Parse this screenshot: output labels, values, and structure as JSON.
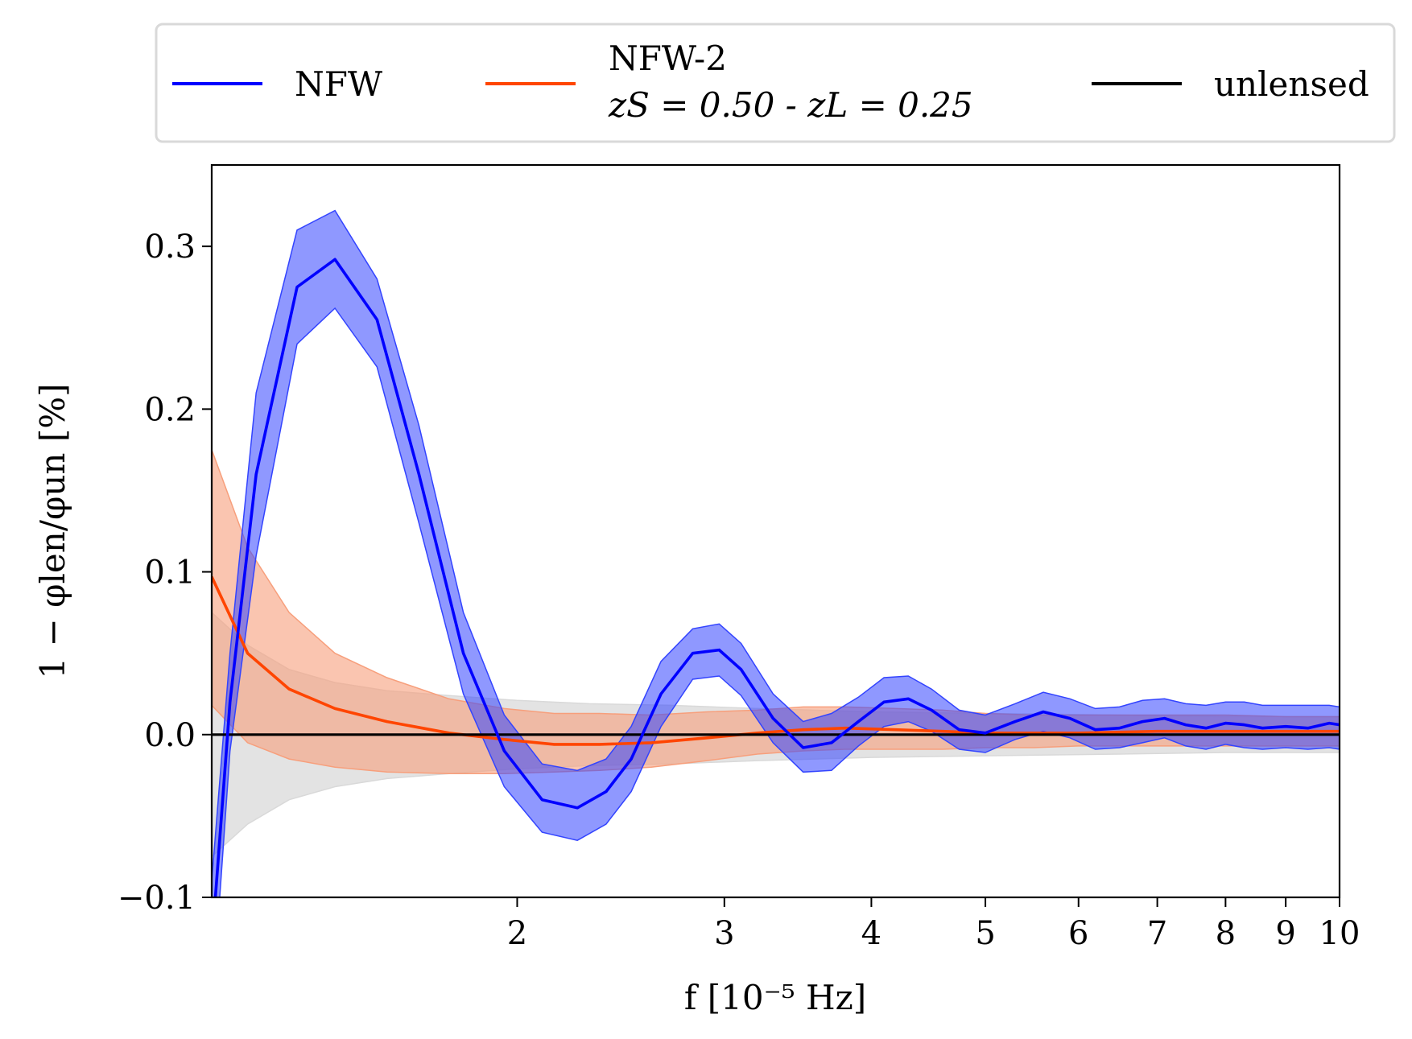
{
  "chart_data": {
    "type": "line",
    "title": "",
    "xlabel": "f [10⁻⁵ Hz]",
    "ylabel": "1 − φlen/φun [%]",
    "xscale": "log",
    "xlim": [
      1.1,
      10
    ],
    "ylim": [
      -0.1,
      0.35
    ],
    "x_ticks": [
      2,
      3,
      4,
      5,
      6,
      7,
      8,
      9,
      10
    ],
    "x_tick_labels": [
      "2",
      "3",
      "4",
      "5",
      "6",
      "7",
      "8",
      "9",
      "10"
    ],
    "y_ticks": [
      -0.1,
      0.0,
      0.1,
      0.2,
      0.3
    ],
    "y_tick_labels": [
      "−0.1",
      "0.0",
      "0.1",
      "0.2",
      "0.3"
    ],
    "grid": false,
    "legend_position": "top, outside plot",
    "series": [
      {
        "name": "NFW",
        "color": "#0000ff",
        "band_color": "#3344ff",
        "x": [
          1.1,
          1.14,
          1.2,
          1.3,
          1.4,
          1.52,
          1.65,
          1.8,
          1.95,
          2.1,
          2.25,
          2.38,
          2.5,
          2.65,
          2.82,
          2.97,
          3.1,
          3.3,
          3.5,
          3.7,
          3.9,
          4.1,
          4.3,
          4.5,
          4.75,
          5.0,
          5.3,
          5.6,
          5.9,
          6.2,
          6.5,
          6.8,
          7.1,
          7.4,
          7.7,
          8.0,
          8.3,
          8.6,
          9.0,
          9.4,
          9.8,
          10.0
        ],
        "values": [
          -0.13,
          0.02,
          0.16,
          0.275,
          0.292,
          0.255,
          0.16,
          0.05,
          -0.01,
          -0.04,
          -0.045,
          -0.035,
          -0.015,
          0.025,
          0.05,
          0.052,
          0.04,
          0.01,
          -0.008,
          -0.005,
          0.008,
          0.02,
          0.022,
          0.015,
          0.003,
          0.001,
          0.008,
          0.014,
          0.01,
          0.003,
          0.004,
          0.008,
          0.01,
          0.006,
          0.004,
          0.007,
          0.006,
          0.004,
          0.005,
          0.004,
          0.007,
          0.006
        ],
        "upper": [
          -0.09,
          0.05,
          0.21,
          0.31,
          0.322,
          0.28,
          0.19,
          0.075,
          0.012,
          -0.018,
          -0.022,
          -0.015,
          0.005,
          0.045,
          0.065,
          0.068,
          0.056,
          0.025,
          0.008,
          0.013,
          0.023,
          0.035,
          0.036,
          0.028,
          0.015,
          0.012,
          0.019,
          0.026,
          0.022,
          0.016,
          0.017,
          0.021,
          0.022,
          0.019,
          0.018,
          0.02,
          0.02,
          0.018,
          0.018,
          0.018,
          0.018,
          0.017
        ],
        "lower": [
          -0.17,
          -0.01,
          0.11,
          0.24,
          0.262,
          0.226,
          0.13,
          0.025,
          -0.032,
          -0.06,
          -0.065,
          -0.055,
          -0.035,
          0.005,
          0.034,
          0.036,
          0.024,
          -0.005,
          -0.023,
          -0.022,
          -0.007,
          0.005,
          0.008,
          0.002,
          -0.009,
          -0.011,
          -0.003,
          0.002,
          -0.002,
          -0.009,
          -0.008,
          -0.005,
          -0.002,
          -0.007,
          -0.009,
          -0.006,
          -0.008,
          -0.009,
          -0.008,
          -0.009,
          -0.008,
          -0.009
        ]
      },
      {
        "name": "NFW-2",
        "name_line2": "zS = 0.50 - zL = 0.25",
        "color": "#ff4500",
        "band_color": "#f79f7c",
        "x": [
          1.1,
          1.18,
          1.28,
          1.4,
          1.55,
          1.75,
          1.95,
          2.15,
          2.35,
          2.6,
          2.9,
          3.2,
          3.5,
          3.8,
          4.2,
          4.6,
          5.0,
          5.5,
          6.0,
          7.0,
          8.0,
          9.0,
          10.0
        ],
        "values": [
          0.097,
          0.05,
          0.028,
          0.016,
          0.008,
          0.001,
          -0.003,
          -0.006,
          -0.006,
          -0.005,
          -0.002,
          0.001,
          0.003,
          0.004,
          0.003,
          0.002,
          0.001,
          0.001,
          0.001,
          0.002,
          0.002,
          0.002,
          0.002
        ],
        "upper": [
          0.175,
          0.115,
          0.075,
          0.05,
          0.035,
          0.022,
          0.016,
          0.013,
          0.013,
          0.012,
          0.014,
          0.015,
          0.017,
          0.017,
          0.016,
          0.015,
          0.013,
          0.012,
          0.012,
          0.012,
          0.012,
          0.011,
          0.011
        ],
        "lower": [
          0.018,
          -0.005,
          -0.015,
          -0.02,
          -0.023,
          -0.024,
          -0.024,
          -0.023,
          -0.022,
          -0.02,
          -0.016,
          -0.012,
          -0.01,
          -0.009,
          -0.009,
          -0.009,
          -0.008,
          -0.008,
          -0.007,
          -0.007,
          -0.007,
          -0.007,
          -0.007
        ]
      },
      {
        "name": "unlensed",
        "color": "#000000",
        "band_color": "#d9d9d9",
        "x": [
          1.1,
          1.18,
          1.28,
          1.4,
          1.55,
          1.75,
          2.0,
          2.3,
          2.7,
          3.2,
          4.0,
          5.0,
          6.5,
          8.0,
          10.0
        ],
        "values": [
          0,
          0,
          0,
          0,
          0,
          0,
          0,
          0,
          0,
          0,
          0,
          0,
          0,
          0,
          0
        ],
        "upper": [
          0.075,
          0.055,
          0.04,
          0.032,
          0.027,
          0.024,
          0.021,
          0.019,
          0.018,
          0.016,
          0.014,
          0.013,
          0.012,
          0.011,
          0.011
        ],
        "lower": [
          -0.075,
          -0.055,
          -0.04,
          -0.032,
          -0.027,
          -0.024,
          -0.021,
          -0.019,
          -0.018,
          -0.016,
          -0.014,
          -0.013,
          -0.012,
          -0.011,
          -0.011
        ]
      }
    ]
  }
}
